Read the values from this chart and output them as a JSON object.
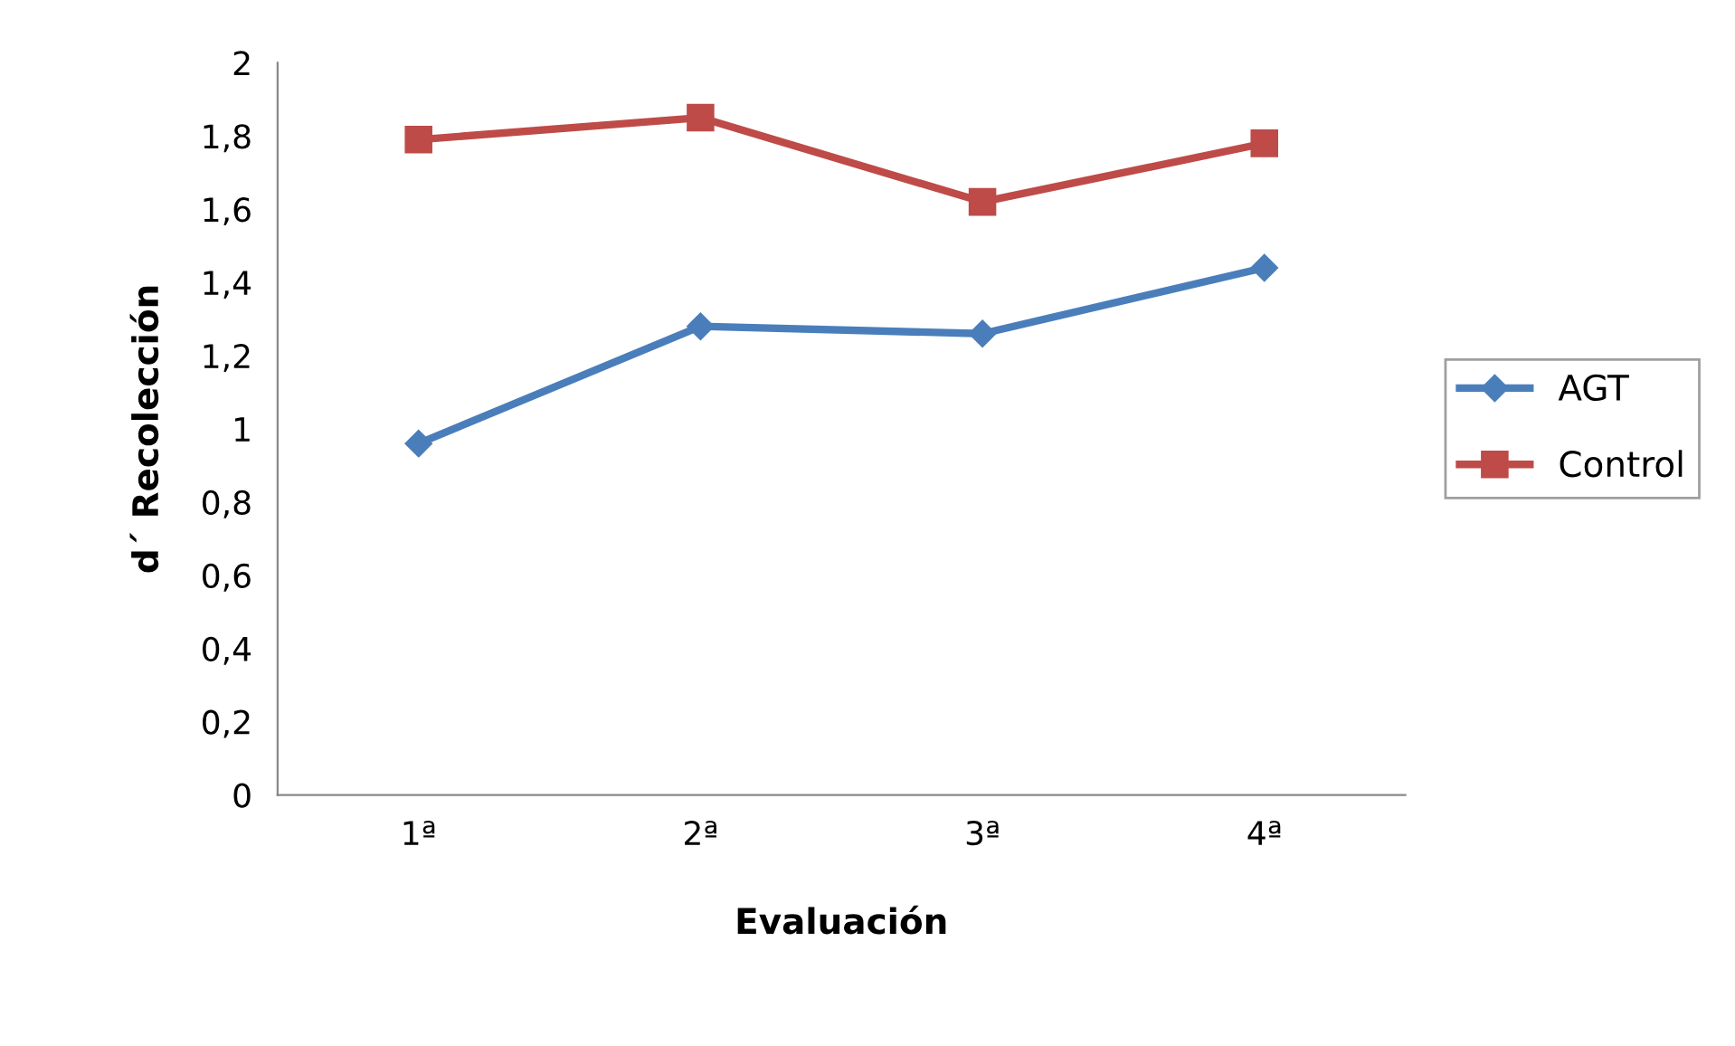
{
  "chart_data": {
    "type": "line",
    "xlabel": "Evaluación",
    "ylabel": "d´ Recolección",
    "categories": [
      "1ª",
      "2ª",
      "3ª",
      "4ª"
    ],
    "series": [
      {
        "name": "AGT",
        "color": "#4a7ebb",
        "values": [
          0.96,
          1.28,
          1.26,
          1.44
        ],
        "marker": "diamond"
      },
      {
        "name": "Control",
        "color": "#be4b48",
        "values": [
          1.79,
          1.85,
          1.62,
          1.78
        ],
        "marker": "square"
      }
    ],
    "ylim": [
      0,
      2
    ],
    "yticks": [
      0,
      {
        "value": 0.2,
        "label": "0,2"
      },
      {
        "value": 0.4,
        "label": "0,4"
      },
      {
        "value": 0.6,
        "label": "0,6"
      },
      {
        "value": 0.8,
        "label": "0,8"
      },
      1,
      {
        "value": 1.2,
        "label": "1,2"
      },
      {
        "value": 1.4,
        "label": "1,4"
      },
      {
        "value": 1.6,
        "label": "1,6"
      },
      {
        "value": 1.8,
        "label": "1,8"
      },
      2
    ],
    "grid": false,
    "legend": "right",
    "line_style": "solid"
  }
}
